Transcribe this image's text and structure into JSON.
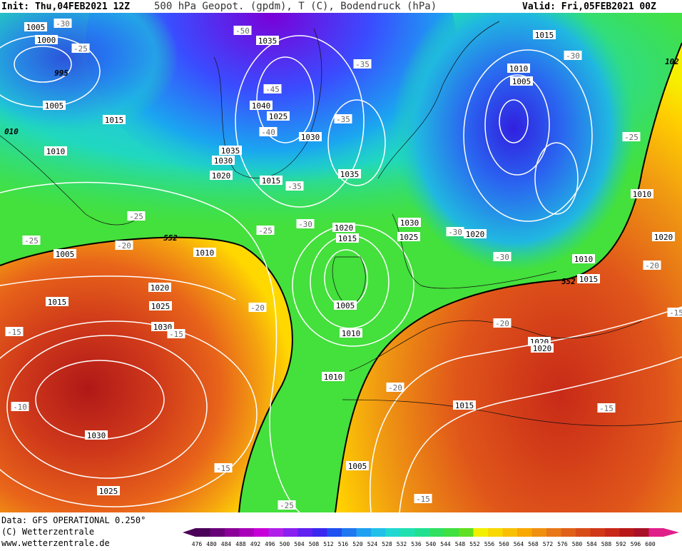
{
  "header": {
    "init": "Init: Thu,04FEB2021 12Z",
    "title": "500 hPa Geopot. (gpdm), T (C), Bodendruck (hPa)",
    "valid": "Valid: Fri,05FEB2021 00Z"
  },
  "map_labels": [
    "1005",
    "-30",
    "-50",
    "1035",
    "1000",
    "-25",
    "1015",
    "-30",
    "102",
    "995",
    "-35",
    "1010",
    "1005",
    "-45",
    "1005",
    "1040",
    "1025",
    "-35",
    "1015",
    "010",
    "-40",
    "1030",
    "-25",
    "1010",
    "1035",
    "1030",
    "1020",
    "1035",
    "1015",
    "-35",
    "1010",
    "-25",
    "-30",
    "1030",
    "-25",
    "1020",
    "-30",
    "1020",
    "1020",
    "-25",
    "1015",
    "1025",
    "552",
    "-20",
    "1005",
    "1010",
    "-30",
    "1010",
    "-20",
    "552",
    "1015",
    "1020",
    "1015",
    "1025",
    "-20",
    "1005",
    "-15",
    "-20",
    "1030",
    "-15",
    "1010",
    "-15",
    "1020",
    "1020",
    "1010",
    "-20",
    "1015",
    "-10",
    "-15",
    "1030",
    "-15",
    "1005",
    "-15",
    "1025",
    "-25"
  ],
  "footer": {
    "data": "Data: GFS OPERATIONAL 0.250°",
    "copyright": "(C) Wetterzentrale",
    "url": "www.wetterzentrale.de"
  },
  "colorbar": {
    "labels": [
      476,
      480,
      484,
      488,
      492,
      496,
      500,
      504,
      508,
      512,
      516,
      520,
      524,
      528,
      532,
      536,
      540,
      544,
      548,
      552,
      556,
      560,
      564,
      568,
      572,
      576,
      580,
      584,
      588,
      592,
      596,
      600
    ]
  }
}
